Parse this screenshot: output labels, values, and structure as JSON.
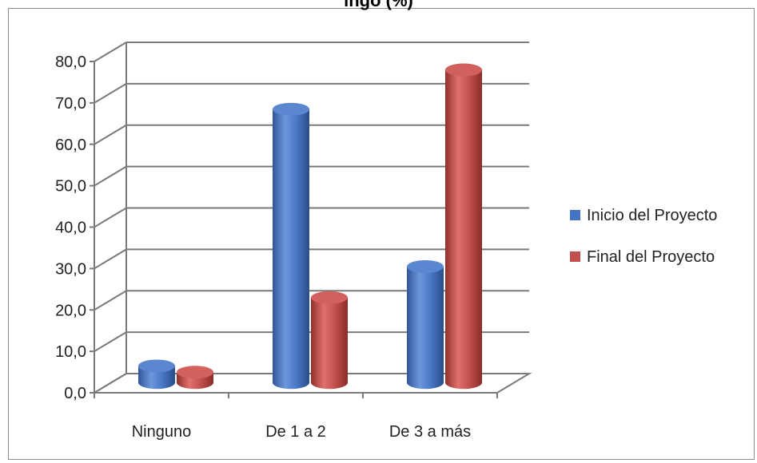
{
  "chart_data": {
    "type": "bar",
    "title": "ingo (%)",
    "categories": [
      "Ninguno",
      "De 1 a 2",
      "De 3 a más"
    ],
    "series": [
      {
        "name": "Inicio del Proyecto",
        "values": [
          4.0,
          66.0,
          28.0
        ],
        "color": "#4472c4"
      },
      {
        "name": "Final del Proyecto",
        "values": [
          2.5,
          20.5,
          75.5
        ],
        "color": "#c0504d"
      }
    ],
    "ylim": [
      0,
      80
    ],
    "yticks": [
      "0,0",
      "10,0",
      "20,0",
      "30,0",
      "40,0",
      "50,0",
      "60,0",
      "70,0",
      "80,0"
    ],
    "grid": true,
    "legend_position": "right",
    "style": "3d-cylinder"
  }
}
